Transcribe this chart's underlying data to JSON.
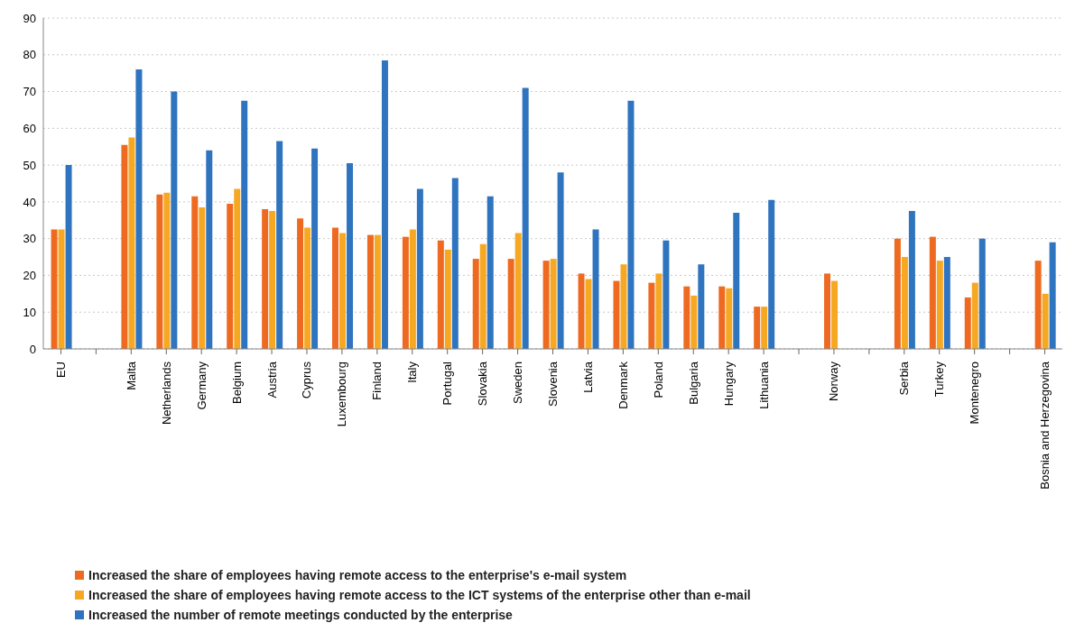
{
  "chart_data": {
    "type": "bar",
    "categories": [
      "EU",
      null,
      "Malta",
      "Netherlands",
      "Germany",
      "Belgium",
      "Austria",
      "Cyprus",
      "Luxembourg",
      "Finland",
      "Italy",
      "Portugal",
      "Slovakia",
      "Sweden",
      "Slovenia",
      "Latvia",
      "Denmark",
      "Poland",
      "Bulgaria",
      "Hungary",
      "Lithuania",
      null,
      "Norway",
      null,
      "Serbia",
      "Turkey",
      "Montenegro",
      null,
      "Bosnia and Herzegovina"
    ],
    "series": [
      {
        "name": "Increased the share of employees having remote access to the enterprise's e-mail system",
        "color": "#ee6a21",
        "values": [
          32.5,
          null,
          55.5,
          42,
          41.5,
          39.5,
          38,
          35.5,
          33,
          31,
          30.5,
          29.5,
          24.5,
          24.5,
          24,
          20.5,
          18.5,
          18,
          17,
          17,
          11.5,
          null,
          20.5,
          null,
          30,
          30.5,
          14,
          null,
          24
        ]
      },
      {
        "name": "Increased the share of employees having remote access to the ICT systems of the enterprise other than e-mail",
        "color": "#f7a823",
        "values": [
          32.5,
          null,
          57.5,
          42.5,
          38.5,
          43.5,
          37.5,
          33,
          31.5,
          31,
          32.5,
          27,
          28.5,
          31.5,
          24.5,
          19,
          23,
          20.5,
          14.5,
          16.5,
          11.5,
          null,
          18.5,
          null,
          25,
          24,
          18,
          null,
          15
        ]
      },
      {
        "name": "Increased the number of remote meetings conducted by the enterprise",
        "color": "#2f74bf",
        "values": [
          50,
          null,
          76,
          70,
          54,
          67.5,
          56.5,
          54.5,
          50.5,
          78.5,
          43.5,
          46.5,
          41.5,
          71,
          48,
          32.5,
          67.5,
          29.5,
          23,
          37,
          40.5,
          null,
          null,
          null,
          37.5,
          25,
          30,
          null,
          29
        ]
      }
    ],
    "ylim": [
      0,
      90
    ],
    "yticks": [
      0,
      10,
      20,
      30,
      40,
      50,
      60,
      70,
      80,
      90
    ],
    "grid": "y",
    "legend": "bottom"
  }
}
